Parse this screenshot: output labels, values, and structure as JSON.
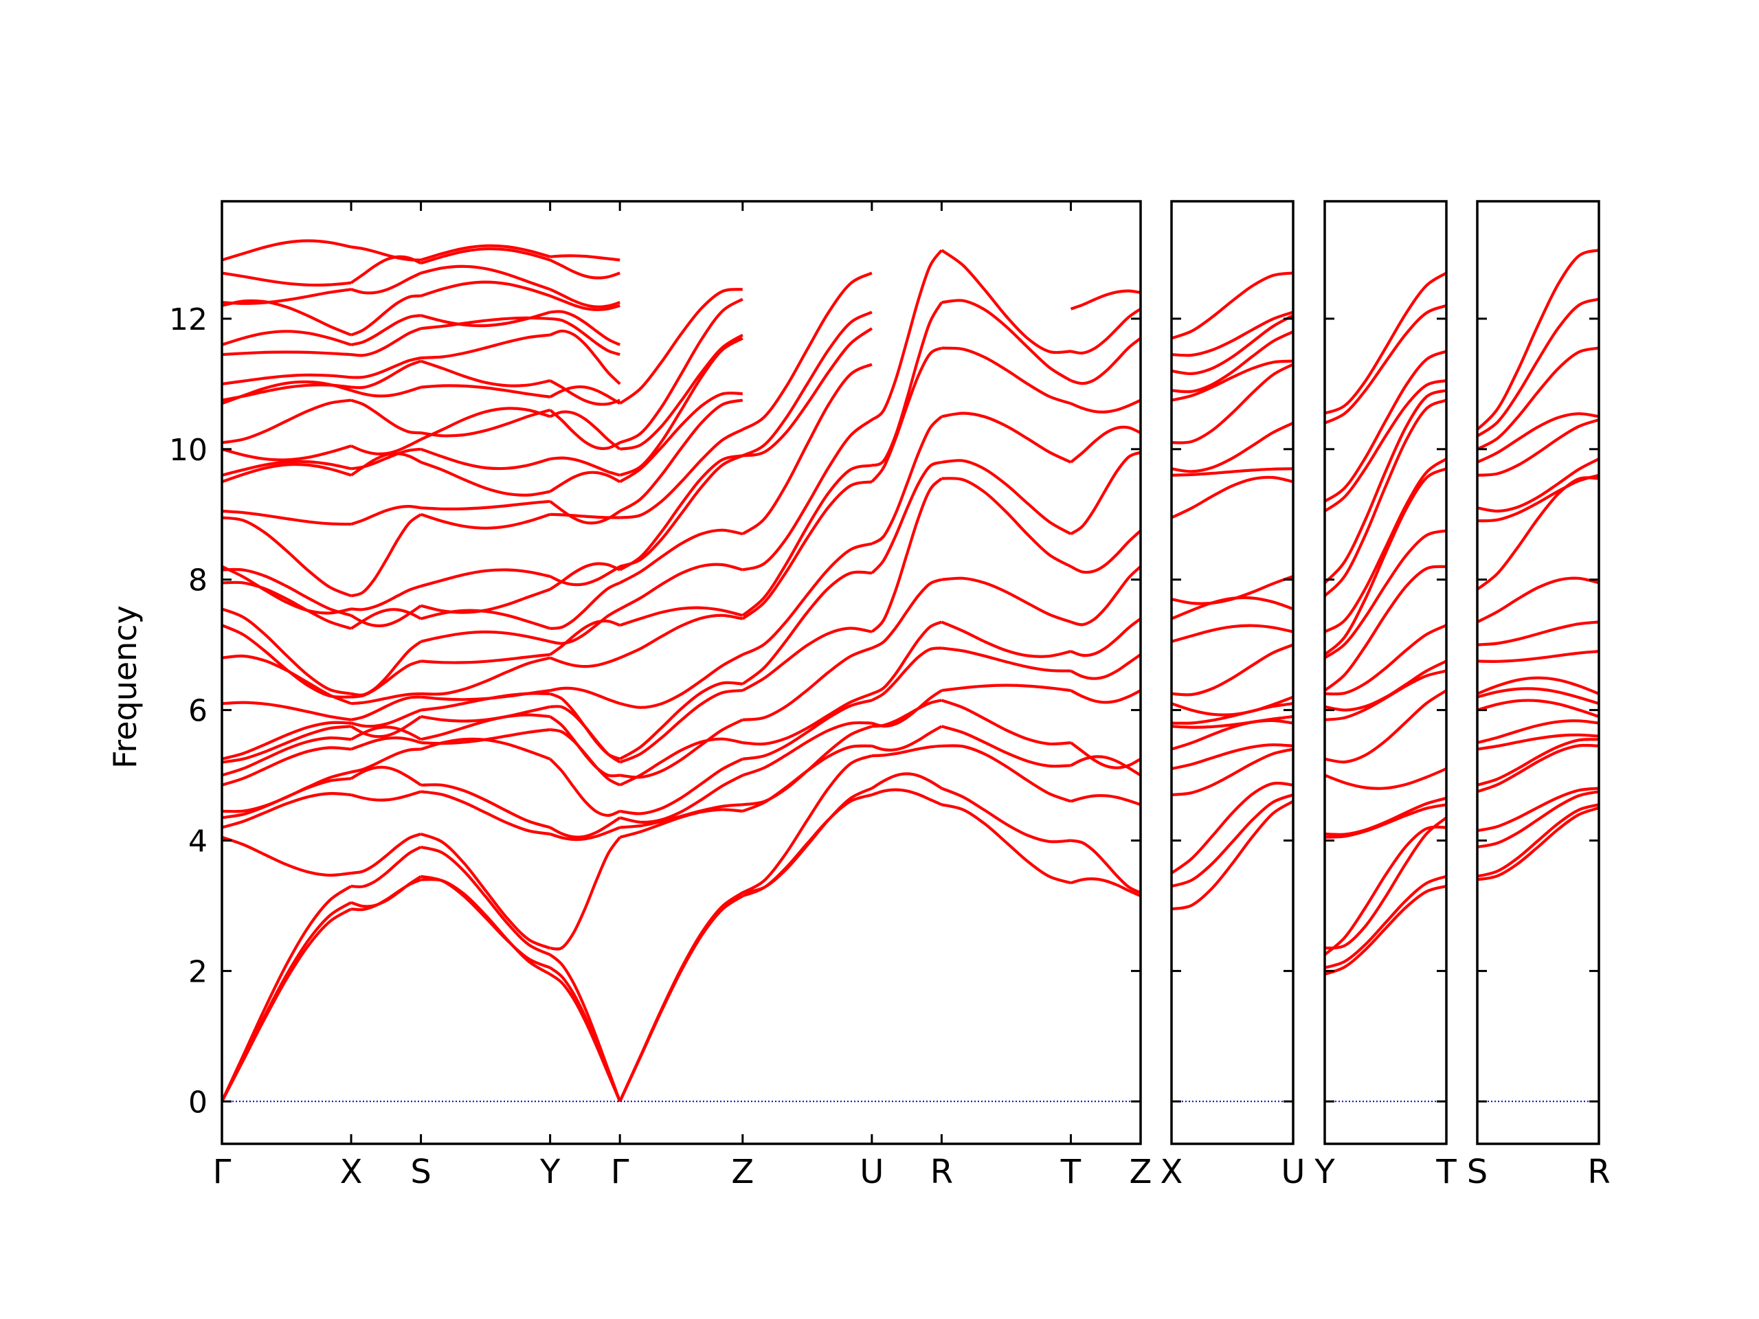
{
  "chart_data": {
    "type": "line",
    "xlabel": "",
    "ylabel": "Frequency",
    "ylim": [
      -0.65,
      13.8
    ],
    "yticks": [
      0,
      2,
      4,
      6,
      8,
      10,
      12
    ],
    "grid": false,
    "legend": "none",
    "band_color": "#ff0000",
    "zero_line_color": "#0000cc",
    "panels": [
      {
        "segments": [
          {
            "from": "Γ",
            "to": "X",
            "length": 1.0
          },
          {
            "from": "X",
            "to": "S",
            "length": 0.54
          },
          {
            "from": "S",
            "to": "Y",
            "length": 1.0
          },
          {
            "from": "Y",
            "to": "Γ",
            "length": 0.54
          },
          {
            "from": "Γ",
            "to": "Z",
            "length": 0.95
          },
          {
            "from": "Z",
            "to": "U",
            "length": 1.0
          },
          {
            "from": "U",
            "to": "R",
            "length": 0.54
          },
          {
            "from": "R",
            "to": "T",
            "length": 1.0
          },
          {
            "from": "T",
            "to": "Z",
            "length": 0.54
          }
        ],
        "labels": [
          "Γ",
          "X",
          "S",
          "Y",
          "Γ",
          "Z",
          "U",
          "R",
          "T",
          "Z"
        ]
      },
      {
        "segments": [
          {
            "from": "X",
            "to": "U",
            "length": 0.95
          }
        ],
        "labels": [
          "X",
          "U"
        ]
      },
      {
        "segments": [
          {
            "from": "Y",
            "to": "T",
            "length": 0.95
          }
        ],
        "labels": [
          "Y",
          "T"
        ]
      },
      {
        "segments": [
          {
            "from": "S",
            "to": "R",
            "length": 0.95
          }
        ],
        "labels": [
          "S",
          "R"
        ]
      }
    ],
    "key_frequencies": {
      "Γ": [
        0,
        0,
        0,
        4.05,
        4.2,
        4.35,
        4.45,
        4.85,
        5.0,
        5.2,
        5.25,
        6.1,
        6.8,
        7.3,
        7.55,
        7.95,
        8.15,
        8.2,
        8.95,
        9.05,
        9.5,
        9.6,
        10.0,
        10.1,
        10.7,
        10.75,
        11.0,
        11.45,
        11.6,
        12.2,
        12.25,
        12.7,
        12.9
      ],
      "X": [
        2.95,
        3.05,
        3.3,
        3.5,
        4.7,
        4.95,
        5.05,
        5.4,
        5.55,
        5.75,
        5.8,
        5.85,
        6.1,
        6.2,
        6.25,
        7.25,
        7.45,
        7.55,
        7.75,
        8.85,
        9.6,
        9.7,
        10.05,
        10.75,
        10.9,
        10.95,
        11.1,
        11.45,
        11.6,
        11.75,
        12.45,
        12.55,
        13.1
      ],
      "S": [
        3.4,
        3.45,
        3.9,
        4.1,
        4.75,
        4.85,
        5.4,
        5.5,
        5.55,
        5.9,
        6.0,
        6.2,
        6.25,
        6.75,
        7.05,
        7.4,
        7.6,
        7.9,
        9.0,
        9.1,
        9.8,
        10.0,
        10.15,
        10.25,
        10.95,
        11.35,
        11.4,
        11.85,
        12.05,
        12.35,
        12.7,
        12.85,
        12.9
      ],
      "Y": [
        1.95,
        2.05,
        2.25,
        2.35,
        4.1,
        4.2,
        5.25,
        5.7,
        5.9,
        6.05,
        6.25,
        6.3,
        6.8,
        6.85,
        7.05,
        7.25,
        7.85,
        8.05,
        9.0,
        9.2,
        9.35,
        9.85,
        10.5,
        10.6,
        10.8,
        11.05,
        11.75,
        12.0,
        12.1,
        12.35,
        12.45,
        12.9,
        12.95
      ],
      "Z": [
        3.15,
        3.2,
        3.2,
        4.45,
        4.55,
        5.0,
        5.25,
        5.5,
        5.85,
        6.3,
        6.4,
        6.85,
        7.4,
        7.45,
        8.15,
        8.7,
        9.9,
        9.9,
        10.3,
        10.75,
        10.85,
        11.7,
        11.75,
        12.3,
        12.45
      ],
      "U": [
        4.7,
        4.8,
        5.3,
        5.45,
        5.75,
        5.8,
        6.15,
        6.25,
        6.95,
        7.2,
        8.1,
        8.55,
        9.5,
        9.75,
        10.45,
        11.3,
        11.85,
        12.1,
        12.7
      ],
      "R": [
        4.55,
        4.8,
        5.45,
        5.75,
        6.15,
        6.3,
        6.95,
        7.35,
        8.0,
        9.55,
        9.8,
        10.5,
        11.55,
        12.25,
        13.05
      ],
      "T": [
        3.35,
        4.0,
        4.6,
        5.15,
        5.5,
        6.3,
        6.6,
        6.9,
        7.35,
        8.2,
        8.7,
        9.8,
        10.7,
        11.05,
        11.5,
        12.15,
        12.65
      ],
      "Zend": [
        3.15,
        3.2,
        4.55,
        5.0,
        5.25,
        6.3,
        6.85,
        7.4,
        8.2,
        8.75,
        9.95,
        10.25,
        10.75,
        11.7,
        12.15,
        12.4
      ]
    },
    "paths": {
      "X-U": {
        "start": [
          2.95,
          3.3,
          3.5,
          4.7,
          5.1,
          5.4,
          5.75,
          5.8,
          6.1,
          6.25,
          7.05,
          7.4,
          7.7,
          8.95,
          9.6,
          9.7,
          10.1,
          10.75,
          10.9,
          11.2,
          11.45,
          11.7,
          12.05,
          12.5,
          13.1
        ],
        "end": [
          4.6,
          4.7,
          4.85,
          5.4,
          5.45,
          5.8,
          5.9,
          6.1,
          6.2,
          7.0,
          7.2,
          7.55,
          8.05,
          9.5,
          9.7,
          10.4,
          11.3,
          11.35,
          11.8,
          12.05,
          12.1,
          12.7
        ]
      },
      "Y-T": {
        "start": [
          1.95,
          2.05,
          2.25,
          2.35,
          4.05,
          4.1,
          5.0,
          5.25,
          5.85,
          6.05,
          6.25,
          6.3,
          6.8,
          6.85,
          7.2,
          7.75,
          7.95,
          9.05,
          9.2,
          10.4,
          10.55,
          10.9,
          11.75,
          11.95,
          12.05,
          12.45,
          12.9
        ],
        "end": [
          3.3,
          3.45,
          4.2,
          4.35,
          4.55,
          4.65,
          5.1,
          6.3,
          6.6,
          6.75,
          7.3,
          8.2,
          8.75,
          9.7,
          9.85,
          10.75,
          10.9,
          11.05,
          11.5,
          12.2,
          12.7
        ]
      },
      "S-R": {
        "start": [
          3.4,
          3.45,
          3.9,
          4.15,
          4.75,
          4.85,
          5.4,
          5.5,
          6.0,
          6.2,
          6.25,
          6.75,
          7.0,
          7.35,
          7.85,
          8.9,
          9.1,
          9.6,
          9.8,
          10.0,
          10.2,
          10.3,
          11.3,
          11.35,
          11.85,
          12.05,
          12.4,
          12.85
        ],
        "end": [
          4.5,
          4.55,
          4.75,
          4.8,
          5.45,
          5.55,
          5.6,
          5.8,
          5.9,
          6.1,
          6.25,
          6.9,
          7.35,
          7.95,
          9.55,
          9.6,
          9.85,
          10.45,
          10.5,
          11.55,
          12.3,
          13.05
        ]
      }
    }
  }
}
